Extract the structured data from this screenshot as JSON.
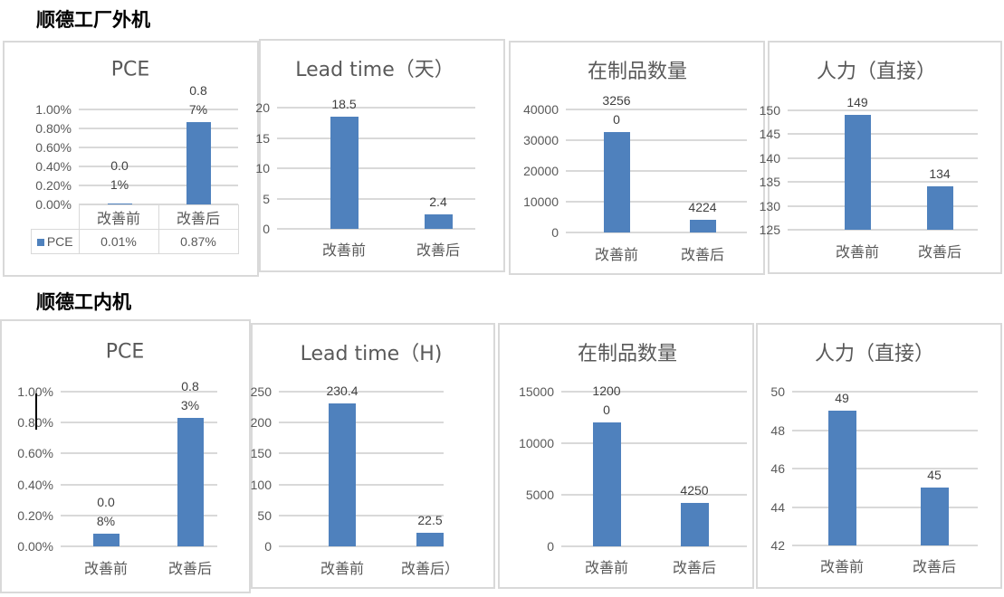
{
  "sections": [
    {
      "title": "顺德工厂外机"
    },
    {
      "title": "顺德工内机"
    }
  ],
  "colors": {
    "bar": "#4f81bd",
    "grid": "#d9d9d9",
    "text": "#595959"
  },
  "chart_data": [
    {
      "type": "bar",
      "title": "PCE",
      "categories": [
        "改善前",
        "改善后"
      ],
      "values": [
        0.01,
        0.87
      ],
      "value_unit": "%",
      "data_labels": [
        "0.01%",
        "0.87%"
      ],
      "yticks": [
        "0.00%",
        "0.20%",
        "0.40%",
        "0.60%",
        "0.80%",
        "1.00%"
      ],
      "ylim": [
        0,
        1.0
      ],
      "data_table": {
        "series_name": "PCE",
        "values": [
          "0.01%",
          "0.87%"
        ]
      }
    },
    {
      "type": "bar",
      "title": "Lead time（天）",
      "categories": [
        "改善前",
        "改善后"
      ],
      "values": [
        18.5,
        2.4
      ],
      "data_labels": [
        "18.5",
        "2.4"
      ],
      "yticks": [
        "0",
        "5",
        "10",
        "15",
        "20"
      ],
      "ylim": [
        0,
        20
      ]
    },
    {
      "type": "bar",
      "title": "在制品数量",
      "categories": [
        "改善前",
        "改善后"
      ],
      "values": [
        32560,
        4224
      ],
      "data_labels": [
        "32560",
        "4224"
      ],
      "yticks": [
        "0",
        "10000",
        "20000",
        "30000",
        "40000"
      ],
      "ylim": [
        0,
        40000
      ]
    },
    {
      "type": "bar",
      "title": "人力（直接）",
      "categories": [
        "改善前",
        "改善后"
      ],
      "values": [
        149,
        134
      ],
      "data_labels": [
        "149",
        "134"
      ],
      "yticks": [
        "125",
        "130",
        "135",
        "140",
        "145",
        "150"
      ],
      "ylim": [
        125,
        150
      ]
    },
    {
      "type": "bar",
      "title": "PCE",
      "categories": [
        "改善前",
        "改善后"
      ],
      "values": [
        0.08,
        0.83
      ],
      "value_unit": "%",
      "data_labels": [
        "0.08%",
        "0.83%"
      ],
      "yticks": [
        "0.00%",
        "0.20%",
        "0.40%",
        "0.60%",
        "0.80%",
        "1.00%"
      ],
      "ylim": [
        0,
        1.0
      ]
    },
    {
      "type": "bar",
      "title": "Lead time（H)",
      "categories": [
        "改善前",
        "改善后）"
      ],
      "values": [
        230.4,
        22.5
      ],
      "data_labels": [
        "230.4",
        "22.5"
      ],
      "yticks": [
        "0",
        "50",
        "100",
        "150",
        "200",
        "250"
      ],
      "ylim": [
        0,
        250
      ]
    },
    {
      "type": "bar",
      "title": "在制品数量",
      "categories": [
        "改善前",
        "改善后"
      ],
      "values": [
        12000,
        4250
      ],
      "data_labels": [
        "12000",
        "4250"
      ],
      "yticks": [
        "0",
        "5000",
        "10000",
        "15000"
      ],
      "ylim": [
        0,
        15000
      ]
    },
    {
      "type": "bar",
      "title": "人力（直接）",
      "categories": [
        "改善前",
        "改善后"
      ],
      "values": [
        49,
        45
      ],
      "data_labels": [
        "49",
        "45"
      ],
      "yticks": [
        "42",
        "44",
        "46",
        "48",
        "50"
      ],
      "ylim": [
        42,
        50
      ]
    }
  ]
}
